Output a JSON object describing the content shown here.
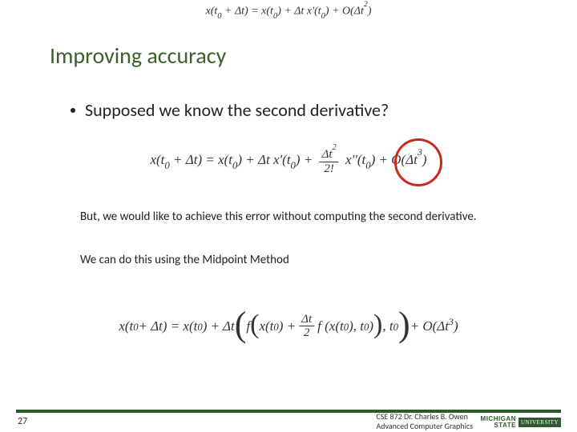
{
  "colors": {
    "title": "#3d5d2b",
    "highlight_circle": "#c82a1a",
    "footer_bar": "#2d5a2b",
    "text": "#222222",
    "background": "#ffffff"
  },
  "typography": {
    "title_fontsize": 28,
    "bullet_fontsize": 22,
    "body_fontsize": 15,
    "equation_fontsize": 17,
    "footer_fontsize": 10
  },
  "top_equation": {
    "lhs": "x(t",
    "sub0": "0",
    "plus_dt": " + Δt) = x(t",
    "rhs1": ") + Δt x'(t",
    "rhs2": ") + O(Δt",
    "sup2": "2",
    "close": ")"
  },
  "title": "Improving accuracy",
  "bullet": "Supposed we know the second derivative?",
  "eq1": {
    "part1": "x(t",
    "sub0": "0",
    "p2": " + Δt) = x(t",
    "p3": ") + Δt x'(t",
    "p4": ") + ",
    "frac_num_a": "Δt",
    "frac_num_sup": "2",
    "frac_den": "2!",
    "p5": " x''(t",
    "p6": ") + O(Δt",
    "sup3": "3",
    "close": ")"
  },
  "body1": "But, we would like to achieve this error without computing the second derivative.",
  "body2": "We can do this using the Midpoint Method",
  "eq2": {
    "p1": "x(t",
    "sub0": "0",
    "p2": " + Δt) = x(t",
    "p3": ") + Δt ",
    "f": "f",
    "inner1": "x(t",
    "inner2": ") + ",
    "frac_num": "Δt",
    "frac_den": "2",
    "inner3": " f (x(t",
    "inner4": "), t",
    "inner5": ")",
    "comma_t0": ", t",
    "p_end": " + O(Δt",
    "sup3": "3",
    "close": ")"
  },
  "slide_number": "27",
  "footer": {
    "line1": "CSE 872 Dr. Charles B. Owen",
    "line2": "Advanced Computer Graphics"
  },
  "logo": {
    "line1": "MICHIGAN STATE",
    "line2": "UNIVERSITY"
  }
}
